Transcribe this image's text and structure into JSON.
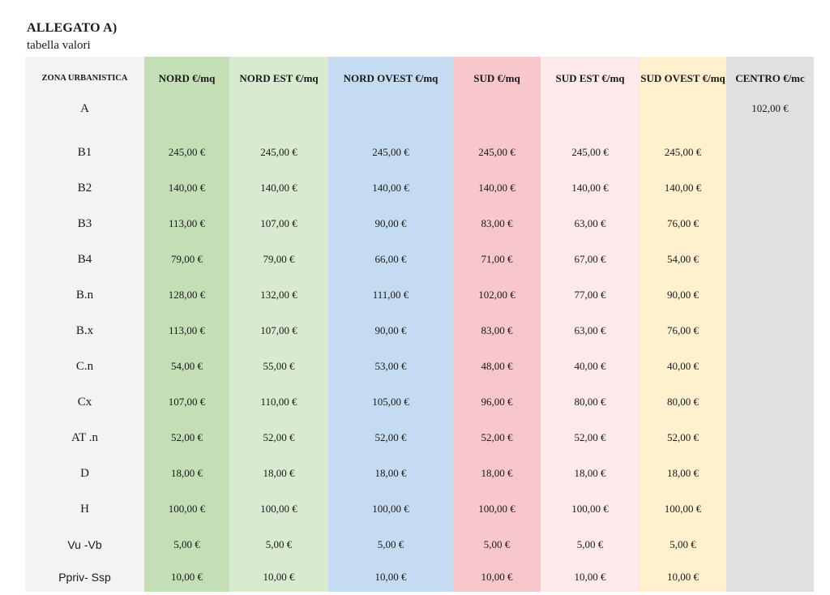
{
  "header": {
    "title": "ALLEGATO A)",
    "subtitle": "tabella valori"
  },
  "table": {
    "columns": [
      "ZONA URBANISTICA",
      "NORD €/mq",
      "NORD EST €/mq",
      "NORD OVEST €/mq",
      "SUD €/mq",
      "SUD EST €/mq",
      "SUD OVEST €/mq",
      "CENTRO €/mc"
    ],
    "rows": [
      {
        "zone": "A",
        "values": [
          "",
          "",
          "",
          "",
          "",
          "",
          "102,00 €"
        ]
      },
      {
        "zone": "B1",
        "values": [
          "245,00 €",
          "245,00 €",
          "245,00 €",
          "245,00 €",
          "245,00 €",
          "245,00 €",
          ""
        ]
      },
      {
        "zone": "B2",
        "values": [
          "140,00 €",
          "140,00 €",
          "140,00 €",
          "140,00 €",
          "140,00 €",
          "140,00 €",
          ""
        ]
      },
      {
        "zone": "B3",
        "values": [
          "113,00 €",
          "107,00 €",
          "90,00 €",
          "83,00 €",
          "63,00 €",
          "76,00 €",
          ""
        ]
      },
      {
        "zone": "B4",
        "values": [
          "79,00 €",
          "79,00 €",
          "66,00 €",
          "71,00 €",
          "67,00 €",
          "54,00 €",
          ""
        ]
      },
      {
        "zone": "B.n",
        "values": [
          "128,00 €",
          "132,00 €",
          "111,00 €",
          "102,00 €",
          "77,00 €",
          "90,00 €",
          ""
        ]
      },
      {
        "zone": "B.x",
        "values": [
          "113,00 €",
          "107,00 €",
          "90,00 €",
          "83,00 €",
          "63,00 €",
          "76,00 €",
          ""
        ]
      },
      {
        "zone": "C.n",
        "values": [
          "54,00 €",
          "55,00 €",
          "53,00 €",
          "48,00 €",
          "40,00 €",
          "40,00 €",
          ""
        ]
      },
      {
        "zone": "Cx",
        "values": [
          "107,00 €",
          "110,00 €",
          "105,00 €",
          "96,00 €",
          "80,00 €",
          "80,00 €",
          ""
        ]
      },
      {
        "zone": "AT .n",
        "values": [
          "52,00 €",
          "52,00 €",
          "52,00 €",
          "52,00 €",
          "52,00 €",
          "52,00 €",
          ""
        ]
      },
      {
        "zone": "D",
        "values": [
          "18,00 €",
          "18,00 €",
          "18,00 €",
          "18,00 €",
          "18,00 €",
          "18,00 €",
          ""
        ]
      },
      {
        "zone": "H",
        "values": [
          "100,00 €",
          "100,00 €",
          "100,00 €",
          "100,00 €",
          "100,00 €",
          "100,00 €",
          ""
        ]
      },
      {
        "zone": "Vu  -Vb",
        "values": [
          "5,00 €",
          "5,00 €",
          "5,00 €",
          "5,00 €",
          "5,00 €",
          "5,00 €",
          ""
        ]
      },
      {
        "zone": "Ppriv- Ssp",
        "values": [
          "10,00 €",
          "10,00 €",
          "10,00 €",
          "10,00 €",
          "10,00 €",
          "10,00 €",
          ""
        ]
      }
    ]
  },
  "colors": {
    "zona": "#f3f3f3",
    "nord": "#c4deb6",
    "nord_est": "#d8ebd0",
    "nord_ovest": "#c5dbf1",
    "sud": "#f7c7cb",
    "sud_est": "#fde9eb",
    "sud_ovest": "#fff0ce",
    "centro": "#e0e0e0"
  }
}
